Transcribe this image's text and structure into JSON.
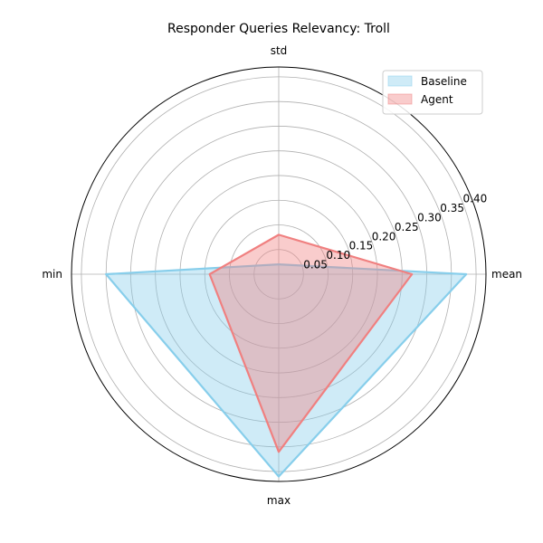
{
  "chart_data": {
    "type": "radar",
    "title": "Responder Queries Relevancy: Troll",
    "axes": [
      "mean",
      "std",
      "min",
      "max"
    ],
    "rlim": [
      0,
      0.42
    ],
    "r_ticks": [
      0.05,
      0.1,
      0.15,
      0.2,
      0.25,
      0.3,
      0.35,
      0.4
    ],
    "r_tick_labels": [
      "0.05",
      "0.10",
      "0.15",
      "0.20",
      "0.25",
      "0.30",
      "0.35",
      "0.40"
    ],
    "grid": true,
    "legend_position": "top-right",
    "series": [
      {
        "name": "Baseline",
        "values": [
          0.38,
          0.02,
          0.35,
          0.41
        ],
        "line_color": "#87ceeb",
        "fill_color": "#87ceeb",
        "fill_opacity": 0.4
      },
      {
        "name": "Agent",
        "values": [
          0.27,
          0.08,
          0.14,
          0.36
        ],
        "line_color": "#f08080",
        "fill_color": "#f08080",
        "fill_opacity": 0.4
      }
    ]
  }
}
